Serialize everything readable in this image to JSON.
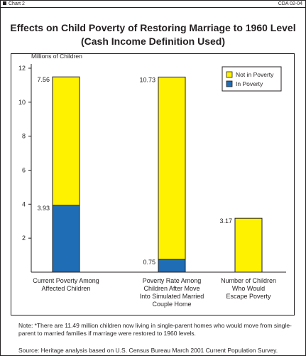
{
  "header": {
    "chart_tag": "Chart 2",
    "code": "CDA 02-04"
  },
  "chart_data": {
    "type": "bar",
    "stacked": true,
    "title_line1": "Effects on Child Poverty of Restoring Marriage to 1960 Level",
    "title_line2": "(Cash Income Definition Used)",
    "ylabel": "Millions of Children",
    "ylim": [
      0,
      12
    ],
    "yticks": [
      2,
      4,
      6,
      8,
      10,
      12
    ],
    "grid": false,
    "legend_position": "top-right",
    "categories": [
      [
        "Current Poverty Among",
        "Affected Children"
      ],
      [
        "Poverty Rate Among",
        "Children After Move",
        "Into Simulated Married",
        "Couple Home"
      ],
      [
        "Number of Children",
        "Who Would",
        "Escape Poverty"
      ]
    ],
    "series": [
      {
        "name": "In Poverty",
        "color": "#1f6db5",
        "values": [
          3.93,
          0.75,
          0
        ]
      },
      {
        "name": "Not in Poverty",
        "color": "#fff200",
        "values": [
          7.56,
          10.73,
          3.17
        ]
      }
    ],
    "legend": [
      "Not in Poverty",
      "In Poverty"
    ],
    "data_labels": [
      {
        "bar": 0,
        "series": 1,
        "text": "7.56"
      },
      {
        "bar": 0,
        "series": 0,
        "text": "3.93"
      },
      {
        "bar": 1,
        "series": 1,
        "text": "10.73"
      },
      {
        "bar": 1,
        "series": 0,
        "text": "0.75"
      },
      {
        "bar": 2,
        "series": 1,
        "text": "3.17"
      }
    ]
  },
  "note": "Note: *There are 11.49 million children now living in single-parent homes who would move from single-parent to married families if marriage were restored to 1960 levels.",
  "source": "Source: Heritage analysis based on U.S. Census Bureau March 2001 Current Population Survey."
}
